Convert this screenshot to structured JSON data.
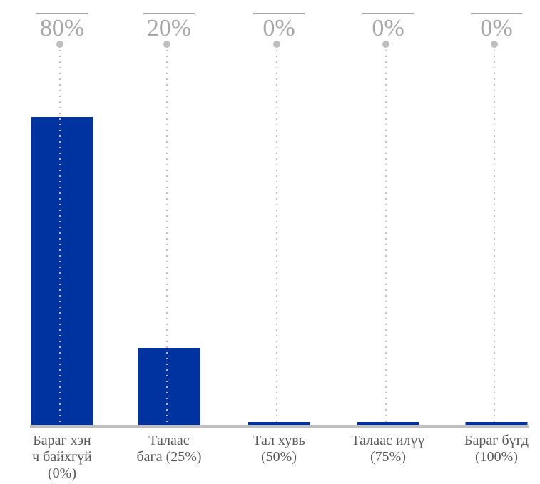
{
  "chart_data": {
    "type": "bar",
    "categories": [
      [
        "Бараг хэн",
        "ч байхгүй",
        "(0%)"
      ],
      [
        "Талаас",
        "бага (25%)"
      ],
      [
        "Тал хувь",
        "(50%)"
      ],
      [
        "Талаас илүү",
        "(75%)"
      ],
      [
        "Бараг бүгд",
        "(100%)"
      ]
    ],
    "values": [
      80,
      20,
      0,
      0,
      0
    ],
    "value_labels": [
      "80%",
      "20%",
      "0%",
      "0%",
      "0%"
    ],
    "ylim": [
      0,
      100
    ],
    "grid": false,
    "legend": "none",
    "colors": {
      "bar": "#0033a0",
      "axis": "#bfbfbf",
      "guide": "#bfbfbf",
      "label": "#a6a6a6",
      "category": "#595959"
    }
  }
}
